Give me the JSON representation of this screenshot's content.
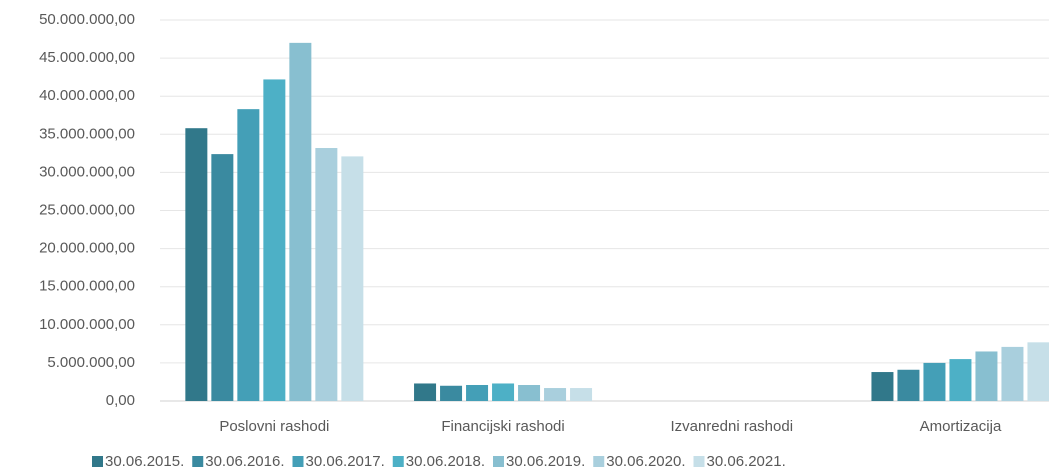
{
  "chart_data": {
    "type": "bar",
    "categories": [
      "Poslovni rashodi",
      "Financijski rashodi",
      "Izvanredni rashodi",
      "Amortizacija"
    ],
    "series": [
      {
        "name": "30.06.2015.",
        "color": "#31788a",
        "values": [
          35800000,
          2300000,
          0,
          3800000
        ]
      },
      {
        "name": "30.06.2016.",
        "color": "#3a8aa0",
        "values": [
          32400000,
          2000000,
          0,
          4100000
        ]
      },
      {
        "name": "30.06.2017.",
        "color": "#449fb7",
        "values": [
          38300000,
          2100000,
          0,
          5000000
        ]
      },
      {
        "name": "30.06.2018.",
        "color": "#4db0c6",
        "values": [
          42200000,
          2300000,
          0,
          5500000
        ]
      },
      {
        "name": "30.06.2019.",
        "color": "#88bfd0",
        "values": [
          47000000,
          2100000,
          0,
          6500000
        ]
      },
      {
        "name": "30.06.2020.",
        "color": "#a9cfdd",
        "values": [
          33200000,
          1700000,
          0,
          7100000
        ]
      },
      {
        "name": "30.06.2021.",
        "color": "#c6dfe8",
        "values": [
          32100000,
          1700000,
          0,
          7700000
        ]
      }
    ],
    "ylim": [
      0,
      50000000
    ],
    "yticks": [
      {
        "value": 0,
        "label": "0,00"
      },
      {
        "value": 5000000,
        "label": "5.000.000,00"
      },
      {
        "value": 10000000,
        "label": "10.000.000,00"
      },
      {
        "value": 15000000,
        "label": "15.000.000,00"
      },
      {
        "value": 20000000,
        "label": "20.000.000,00"
      },
      {
        "value": 25000000,
        "label": "25.000.000,00"
      },
      {
        "value": 30000000,
        "label": "30.000.000,00"
      },
      {
        "value": 35000000,
        "label": "35.000.000,00"
      },
      {
        "value": 40000000,
        "label": "40.000.000,00"
      },
      {
        "value": 45000000,
        "label": "45.000.000,00"
      },
      {
        "value": 50000000,
        "label": "50.000.000,00"
      }
    ],
    "grid": true,
    "legend": "bottom"
  }
}
